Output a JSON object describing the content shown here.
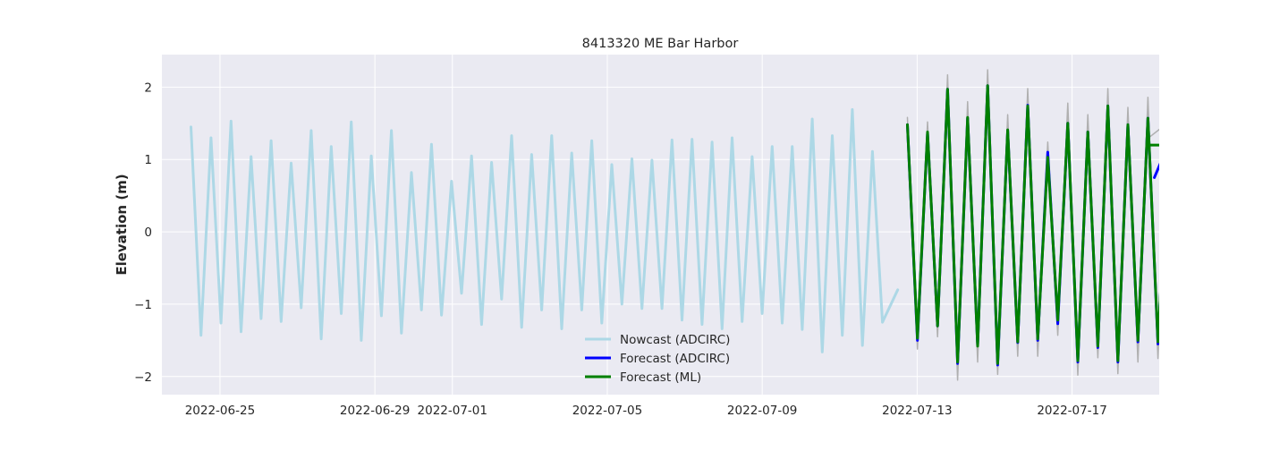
{
  "chart_data": {
    "type": "line",
    "title": "8413320 ME Bar Harbor",
    "xlabel": "",
    "ylabel": "Elevation (m)",
    "xlim": [
      "2022-06-23T12:00",
      "2022-07-19T06:00"
    ],
    "ylim": [
      -2.25,
      2.45
    ],
    "x_ticks": [
      "2022-06-25",
      "2022-06-29",
      "2022-07-01",
      "2022-07-05",
      "2022-07-09",
      "2022-07-13",
      "2022-07-17"
    ],
    "y_ticks": [
      -2,
      -1,
      0,
      1,
      2
    ],
    "y_tick_labels": [
      "−2",
      "−1",
      "0",
      "1",
      "2"
    ],
    "grid": true,
    "legend_position": "bottom-center",
    "colors": {
      "background": "#eaeaf2",
      "grid": "#ffffff",
      "nowcast": "#add8e6",
      "forecast_adcirc": "#0000ff",
      "forecast_ml": "#008000",
      "observed": "#b0b0b0"
    },
    "legend": [
      "Nowcast (ADCIRC)",
      "Forecast (ADCIRC)",
      "Forecast (ML)"
    ],
    "nowcast_start": "2022-06-24T06:00",
    "nowcast_end": "2022-07-12T12:00",
    "nowcast_start_level": 1.45,
    "forecast_start": "2022-07-12T18:00",
    "forecast_end": "2022-07-19T00:00",
    "tide_period_hours": 12.42,
    "series": [
      {
        "name": "Nowcast (ADCIRC)",
        "highs": [
          1.45,
          1.3,
          1.53,
          1.04,
          1.26,
          0.95,
          1.4,
          1.18,
          1.52,
          1.05,
          1.4,
          0.82,
          1.21,
          0.7,
          1.05,
          0.96,
          1.33,
          1.07,
          1.33,
          1.09,
          1.26,
          0.93,
          1.01,
          0.99,
          1.27,
          1.28,
          1.24,
          1.3,
          1.04,
          1.18,
          1.18,
          1.56,
          1.33,
          1.69,
          1.11
        ],
        "lows": [
          -1.43,
          -1.26,
          -1.38,
          -1.2,
          -1.24,
          -1.05,
          -1.48,
          -1.13,
          -1.5,
          -1.16,
          -1.4,
          -1.08,
          -1.15,
          -0.85,
          -1.28,
          -0.93,
          -1.32,
          -1.08,
          -1.34,
          -1.08,
          -1.26,
          -1.0,
          -1.06,
          -1.06,
          -1.22,
          -1.28,
          -1.34,
          -1.24,
          -1.13,
          -1.26,
          -1.35,
          -1.66,
          -1.43,
          -1.57,
          -1.25
        ]
      },
      {
        "name": "Forecast (ADCIRC)",
        "highs": [
          1.48,
          1.37,
          1.97,
          1.57,
          2.02,
          1.4,
          1.75,
          1.1,
          1.5,
          1.38,
          1.74,
          1.48,
          1.57,
          1.2
        ],
        "lows": [
          -1.5,
          -1.3,
          -1.82,
          -1.57,
          -1.84,
          -1.53,
          -1.5,
          -1.27,
          -1.8,
          -1.6,
          -1.8,
          -1.52,
          -1.55
        ],
        "end_value": 0.75
      },
      {
        "name": "Forecast (ML)",
        "highs": [
          1.48,
          1.38,
          1.97,
          1.58,
          2.02,
          1.41,
          1.74,
          1.03,
          1.5,
          1.38,
          1.74,
          1.48,
          1.57,
          1.2
        ],
        "lows": [
          -1.47,
          -1.3,
          -1.8,
          -1.58,
          -1.82,
          -1.52,
          -1.48,
          -1.22,
          -1.78,
          -1.58,
          -1.78,
          -1.5,
          -1.52
        ]
      },
      {
        "highs": [
          1.58,
          1.52,
          2.17,
          1.8,
          2.24,
          1.62,
          1.98,
          1.24,
          1.78,
          1.62,
          1.98,
          1.72,
          1.86,
          1.51
        ],
        "lows": [
          -1.62,
          -1.45,
          -2.05,
          -1.8,
          -1.97,
          -1.72,
          -1.72,
          -1.43,
          -1.98,
          -1.74,
          -1.96,
          -1.8,
          -1.75
        ]
      }
    ]
  }
}
